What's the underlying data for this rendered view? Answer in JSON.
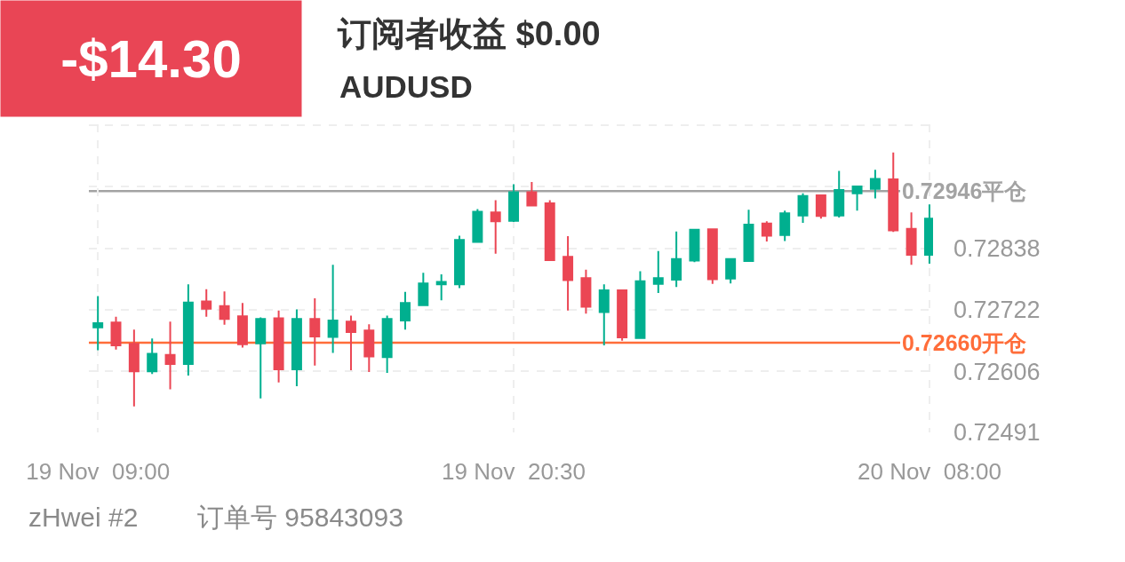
{
  "chart_data": {
    "type": "candlestick",
    "title": "订阅者收益 $0.00",
    "subtitle": "AUDUSD",
    "annotations": [
      "-$14.30",
      "zHwei #2",
      "订单号 95843093"
    ],
    "x": [
      "--11-19T09:00",
      "--11-19T09:30",
      "--11-19T10:00",
      "--11-19T10:30",
      "--11-19T11:00",
      "--11-19T11:30",
      "--11-19T12:00",
      "--11-19T12:30",
      "--11-19T13:00",
      "--11-19T13:30",
      "--11-19T14:00",
      "--11-19T14:30",
      "--11-19T15:00",
      "--11-19T15:30",
      "--11-19T16:00",
      "--11-19T16:30",
      "--11-19T17:00",
      "--11-19T17:30",
      "--11-19T18:00",
      "--11-19T18:30",
      "--11-19T19:00",
      "--11-19T19:30",
      "--11-19T20:00",
      "--11-19T20:30",
      "--11-19T21:00",
      "--11-19T21:30",
      "--11-19T22:00",
      "--11-19T22:30",
      "--11-19T23:00",
      "--11-19T23:30",
      "--11-20T00:00",
      "--11-20T00:30",
      "--11-20T01:00",
      "--11-20T01:30",
      "--11-20T02:00",
      "--11-20T02:30",
      "--11-20T03:00",
      "--11-20T03:30",
      "--11-20T04:00",
      "--11-20T04:30",
      "--11-20T05:00",
      "--11-20T05:30",
      "--11-20T06:00",
      "--11-20T06:30",
      "--11-20T07:00",
      "--11-20T07:30",
      "--11-20T08:00"
    ],
    "ohlc": [
      [
        0.72689,
        0.72748,
        0.72646,
        0.72697
      ],
      [
        0.72698,
        0.72709,
        0.72647,
        0.72655
      ],
      [
        0.72658,
        0.72685,
        0.7254,
        0.72606
      ],
      [
        0.72606,
        0.72668,
        0.72601,
        0.72639
      ],
      [
        0.72637,
        0.727,
        0.72572,
        0.7262
      ],
      [
        0.7262,
        0.7277,
        0.72598,
        0.72736
      ],
      [
        0.72738,
        0.72761,
        0.72709,
        0.72724
      ],
      [
        0.72729,
        0.72757,
        0.72694,
        0.72705
      ],
      [
        0.7271,
        0.72735,
        0.72651,
        0.72657
      ],
      [
        0.72659,
        0.72708,
        0.72555,
        0.72705
      ],
      [
        0.72706,
        0.72721,
        0.72585,
        0.7261
      ],
      [
        0.7261,
        0.72723,
        0.72578,
        0.72705
      ],
      [
        0.72705,
        0.72744,
        0.72617,
        0.72672
      ],
      [
        0.72671,
        0.72807,
        0.72641,
        0.72702
      ],
      [
        0.727,
        0.72711,
        0.72608,
        0.7268
      ],
      [
        0.72683,
        0.72695,
        0.72605,
        0.72634
      ],
      [
        0.72633,
        0.72711,
        0.72603,
        0.72705
      ],
      [
        0.72702,
        0.72756,
        0.72685,
        0.72735
      ],
      [
        0.72731,
        0.72792,
        0.7273,
        0.72772
      ],
      [
        0.7277,
        0.72789,
        0.7274,
        0.72775
      ],
      [
        0.7277,
        0.72862,
        0.72763,
        0.72854
      ],
      [
        0.7285,
        0.72912,
        0.72849,
        0.72907
      ],
      [
        0.72906,
        0.72929,
        0.72828,
        0.72889
      ],
      [
        0.7289,
        0.72959,
        0.72888,
        0.72944
      ],
      [
        0.72944,
        0.72963,
        0.72918,
        0.72919
      ],
      [
        0.72923,
        0.72929,
        0.72815,
        0.72816
      ],
      [
        0.72822,
        0.72861,
        0.72721,
        0.72778
      ],
      [
        0.72782,
        0.72798,
        0.72715,
        0.72728
      ],
      [
        0.72718,
        0.7277,
        0.72655,
        0.72759
      ],
      [
        0.72759,
        0.7276,
        0.72664,
        0.7267
      ],
      [
        0.72669,
        0.72795,
        0.72668,
        0.72776
      ],
      [
        0.72771,
        0.72833,
        0.72754,
        0.72782
      ],
      [
        0.72779,
        0.7287,
        0.72765,
        0.72818
      ],
      [
        0.72815,
        0.72874,
        0.72812,
        0.72873
      ],
      [
        0.72874,
        0.72875,
        0.72771,
        0.7278
      ],
      [
        0.72781,
        0.72819,
        0.72772,
        0.72818
      ],
      [
        0.72814,
        0.72911,
        0.72813,
        0.72883
      ],
      [
        0.72885,
        0.72889,
        0.72851,
        0.72862
      ],
      [
        0.72863,
        0.72909,
        0.72852,
        0.72904
      ],
      [
        0.729,
        0.72942,
        0.72886,
        0.72937
      ],
      [
        0.72938,
        0.72939,
        0.72894,
        0.72899
      ],
      [
        0.729,
        0.72984,
        0.72896,
        0.72948
      ],
      [
        0.72942,
        0.72956,
        0.72909,
        0.72955
      ],
      [
        0.7295,
        0.72986,
        0.72932,
        0.72969
      ],
      [
        0.72968,
        0.73019,
        0.72869,
        0.72872
      ],
      [
        0.72875,
        0.72906,
        0.72807,
        0.72826
      ],
      [
        0.72826,
        0.72921,
        0.72809,
        0.72894
      ]
    ],
    "colors": [
      "#00af8f",
      "#eb4654",
      "#eb4654",
      "#00af8f",
      "#eb4654",
      "#00af8f",
      "#eb4654",
      "#eb4654",
      "#eb4654",
      "#00af8f",
      "#eb4654",
      "#00af8f",
      "#eb4654",
      "#00af8f",
      "#eb4654",
      "#eb4654",
      "#00af8f",
      "#00af8f",
      "#00af8f",
      "#00af8f",
      "#00af8f",
      "#00af8f",
      "#eb4654",
      "#00af8f",
      "#eb4654",
      "#eb4654",
      "#eb4654",
      "#eb4654",
      "#00af8f",
      "#eb4654",
      "#00af8f",
      "#00af8f",
      "#00af8f",
      "#00af8f",
      "#eb4654",
      "#00af8f",
      "#00af8f",
      "#eb4654",
      "#00af8f",
      "#00af8f",
      "#eb4654",
      "#00af8f",
      "#00af8f",
      "#00af8f",
      "#eb4654",
      "#eb4654",
      "#00af8f"
    ],
    "xlim": [
      "--11-19T08:45",
      "--11-20T08:06"
    ],
    "xticks": [
      {
        "value": "--11-19T09:00",
        "label": "19 Nov  09:00"
      },
      {
        "value": "--11-19T20:30",
        "label": "19 Nov  20:30"
      },
      {
        "value": "--11-20T08:00",
        "label": "20 Nov  08:00"
      }
    ],
    "ylim": [
      0.72491,
      0.73072
    ],
    "yticks": [
      0.72491,
      0.72606,
      0.72722,
      0.72838,
      {
        "value": 0.72954,
        "label": null
      },
      {
        "value": 0.7307,
        "label": null
      }
    ],
    "ref_lines": [
      {
        "axis": "y",
        "value": 0.72946,
        "label": "0.72946平仓",
        "color": "#a3a3a3"
      },
      {
        "axis": "y",
        "value": 0.7266,
        "label": "0.72660开仓",
        "color": "#ff6d3a"
      }
    ],
    "grid": true
  }
}
